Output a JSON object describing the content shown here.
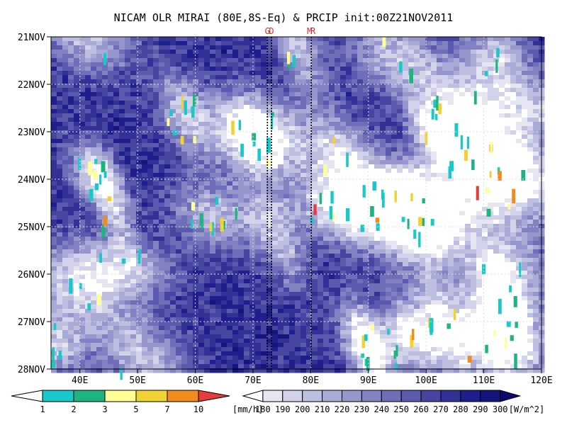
{
  "chart_data": {
    "type": "heatmap",
    "title": "NICAM OLR MIRAI (80E,8S-Eq) & PRCIP init:00Z21NOV2011",
    "x_axis": {
      "range": [
        35,
        120
      ],
      "ticks": [
        40,
        50,
        60,
        70,
        80,
        90,
        100,
        110,
        120
      ],
      "tick_labels": [
        "40E",
        "50E",
        "60E",
        "70E",
        "80E",
        "90E",
        "100E",
        "110E",
        "120E"
      ]
    },
    "y_axis": {
      "range_days": [
        "21NOV",
        "28NOV"
      ],
      "tick_labels": [
        "21NOV",
        "22NOV",
        "23NOV",
        "24NOV",
        "25NOV",
        "26NOV",
        "27NOV",
        "28NOV"
      ],
      "direction": "time increases downward"
    },
    "grid": true,
    "markers": [
      {
        "label": "G",
        "lon": 72.5
      },
      {
        "label": "D",
        "lon": 73.2
      },
      {
        "label": "M",
        "lon": 79.8
      },
      {
        "label": "R",
        "lon": 80.4
      }
    ],
    "precip_colorbar": {
      "unit": "[mm/h]",
      "levels": [
        "1",
        "2",
        "3",
        "5",
        "7",
        "10"
      ],
      "colors": [
        "#ffffff",
        "#19c8c8",
        "#1eb482",
        "#ffff96",
        "#f0d232",
        "#f08c1e",
        "#e63c3c"
      ]
    },
    "olr_colorbar": {
      "unit": "[W/m^2]",
      "levels": [
        "180",
        "190",
        "200",
        "210",
        "220",
        "230",
        "240",
        "250",
        "260",
        "270",
        "280",
        "290",
        "300"
      ],
      "colors": [
        "#ffffff",
        "#e6e6f2",
        "#d2d2ea",
        "#bebee1",
        "#aaaad7",
        "#9696cd",
        "#8282c3",
        "#6e6eb9",
        "#5a5aaf",
        "#4646a0",
        "#323296",
        "#1e1e8c",
        "#14147d",
        "#0a0a6e"
      ]
    }
  }
}
